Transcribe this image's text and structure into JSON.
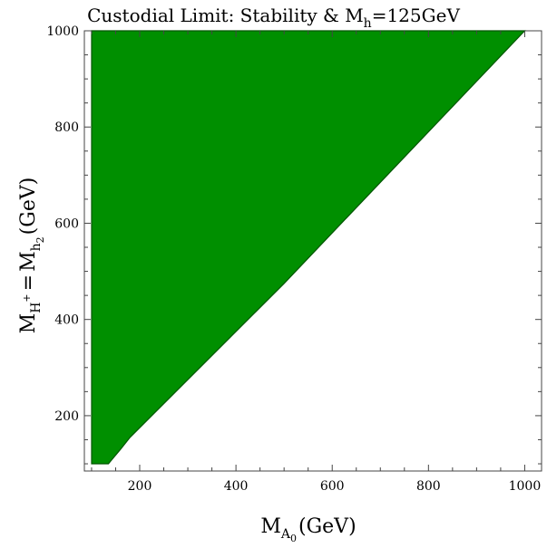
{
  "chart_data": {
    "type": "area",
    "title": {
      "prefix": "Custodial Limit: Stability & M",
      "subscript": "h",
      "suffix": "=125GeV"
    },
    "xlabel": {
      "symbol": "M",
      "sub": "A",
      "subsub": "0",
      "unit": "(GeV)"
    },
    "ylabel": {
      "symbol1": "M",
      "sub1": "H",
      "sup1": "+",
      "eq": "=",
      "symbol2": "M",
      "sub2": "h",
      "subsub2": "2",
      "unit": "(GeV)"
    },
    "xlim": [
      85,
      1035
    ],
    "ylim": [
      85,
      1000
    ],
    "xticks": [
      200,
      400,
      600,
      800,
      1000
    ],
    "yticks": [
      200,
      400,
      600,
      800,
      1000
    ],
    "region_boundary": [
      {
        "x": 100,
        "y": 100
      },
      {
        "x": 135,
        "y": 100
      },
      {
        "x": 160,
        "y": 130
      },
      {
        "x": 180,
        "y": 155
      },
      {
        "x": 215,
        "y": 190
      },
      {
        "x": 300,
        "y": 275
      },
      {
        "x": 500,
        "y": 475
      },
      {
        "x": 700,
        "y": 685
      },
      {
        "x": 1000,
        "y": 1000
      },
      {
        "x": 100,
        "y": 1000
      }
    ],
    "fill_color": "#008f00",
    "edge_color": "#005500",
    "grid": false,
    "legend": "none"
  }
}
